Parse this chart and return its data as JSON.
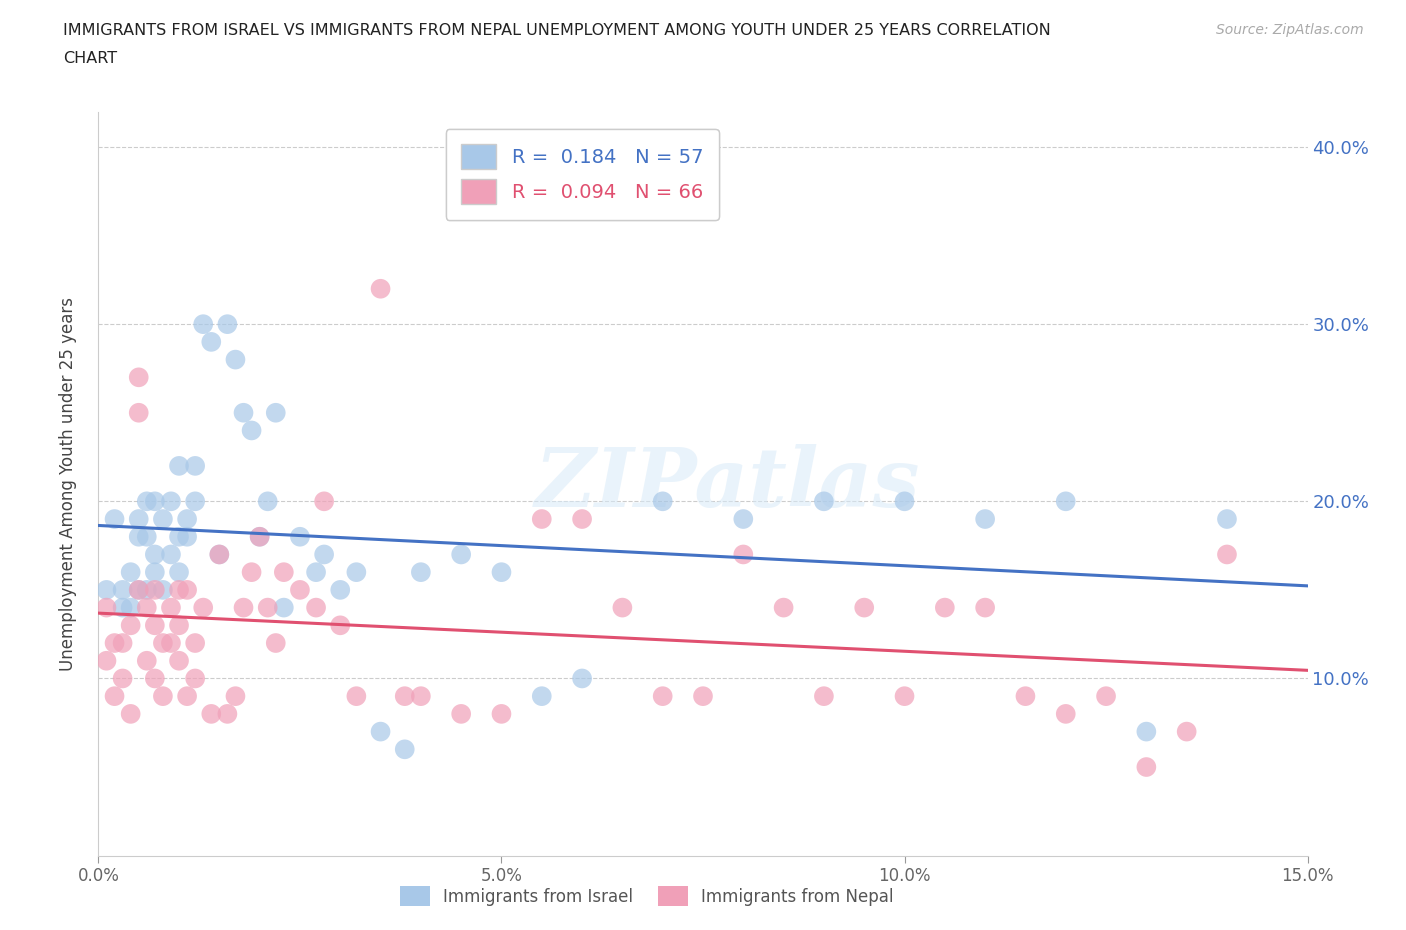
{
  "title_line1": "IMMIGRANTS FROM ISRAEL VS IMMIGRANTS FROM NEPAL UNEMPLOYMENT AMONG YOUTH UNDER 25 YEARS CORRELATION",
  "title_line2": "CHART",
  "source_text": "Source: ZipAtlas.com",
  "ylabel": "Unemployment Among Youth under 25 years",
  "xlim": [
    0.0,
    0.15
  ],
  "ylim": [
    0.0,
    0.42
  ],
  "xticks": [
    0.0,
    0.05,
    0.1,
    0.15
  ],
  "xtick_labels": [
    "0.0%",
    "5.0%",
    "10.0%",
    "15.0%"
  ],
  "ytick_positions": [
    0.1,
    0.2,
    0.3,
    0.4
  ],
  "ytick_labels": [
    "10.0%",
    "20.0%",
    "30.0%",
    "40.0%"
  ],
  "legend_israel": "Immigrants from Israel",
  "legend_nepal": "Immigrants from Nepal",
  "R_israel": "0.184",
  "N_israel": "57",
  "R_nepal": "0.094",
  "N_nepal": "66",
  "color_israel": "#a8c8e8",
  "color_nepal": "#f0a0b8",
  "line_color_israel": "#4472c4",
  "line_color_nepal": "#e05070",
  "ytick_color": "#4472c4",
  "watermark_text": "ZIPatlas",
  "israel_x": [
    0.001,
    0.002,
    0.003,
    0.003,
    0.004,
    0.004,
    0.005,
    0.005,
    0.005,
    0.006,
    0.006,
    0.006,
    0.007,
    0.007,
    0.007,
    0.008,
    0.008,
    0.009,
    0.009,
    0.01,
    0.01,
    0.01,
    0.011,
    0.011,
    0.012,
    0.012,
    0.013,
    0.014,
    0.015,
    0.016,
    0.017,
    0.018,
    0.019,
    0.02,
    0.021,
    0.022,
    0.023,
    0.025,
    0.027,
    0.028,
    0.03,
    0.032,
    0.035,
    0.038,
    0.04,
    0.045,
    0.05,
    0.055,
    0.06,
    0.07,
    0.08,
    0.09,
    0.1,
    0.11,
    0.12,
    0.13,
    0.14
  ],
  "israel_y": [
    0.15,
    0.19,
    0.15,
    0.14,
    0.16,
    0.14,
    0.15,
    0.18,
    0.19,
    0.15,
    0.18,
    0.2,
    0.16,
    0.17,
    0.2,
    0.15,
    0.19,
    0.17,
    0.2,
    0.16,
    0.18,
    0.22,
    0.19,
    0.18,
    0.2,
    0.22,
    0.3,
    0.29,
    0.17,
    0.3,
    0.28,
    0.25,
    0.24,
    0.18,
    0.2,
    0.25,
    0.14,
    0.18,
    0.16,
    0.17,
    0.15,
    0.16,
    0.07,
    0.06,
    0.16,
    0.17,
    0.16,
    0.09,
    0.1,
    0.2,
    0.19,
    0.2,
    0.2,
    0.19,
    0.2,
    0.07,
    0.19
  ],
  "nepal_x": [
    0.001,
    0.001,
    0.002,
    0.002,
    0.003,
    0.003,
    0.004,
    0.004,
    0.005,
    0.005,
    0.005,
    0.006,
    0.006,
    0.007,
    0.007,
    0.007,
    0.008,
    0.008,
    0.009,
    0.009,
    0.01,
    0.01,
    0.01,
    0.011,
    0.011,
    0.012,
    0.012,
    0.013,
    0.014,
    0.015,
    0.016,
    0.017,
    0.018,
    0.019,
    0.02,
    0.021,
    0.022,
    0.023,
    0.025,
    0.027,
    0.028,
    0.03,
    0.032,
    0.035,
    0.038,
    0.04,
    0.045,
    0.05,
    0.055,
    0.06,
    0.065,
    0.07,
    0.075,
    0.08,
    0.085,
    0.09,
    0.095,
    0.1,
    0.105,
    0.11,
    0.115,
    0.12,
    0.125,
    0.13,
    0.135,
    0.14
  ],
  "nepal_y": [
    0.14,
    0.11,
    0.12,
    0.09,
    0.1,
    0.12,
    0.13,
    0.08,
    0.25,
    0.27,
    0.15,
    0.14,
    0.11,
    0.13,
    0.15,
    0.1,
    0.12,
    0.09,
    0.14,
    0.12,
    0.15,
    0.11,
    0.13,
    0.09,
    0.15,
    0.12,
    0.1,
    0.14,
    0.08,
    0.17,
    0.08,
    0.09,
    0.14,
    0.16,
    0.18,
    0.14,
    0.12,
    0.16,
    0.15,
    0.14,
    0.2,
    0.13,
    0.09,
    0.32,
    0.09,
    0.09,
    0.08,
    0.08,
    0.19,
    0.19,
    0.14,
    0.09,
    0.09,
    0.17,
    0.14,
    0.09,
    0.14,
    0.09,
    0.14,
    0.14,
    0.09,
    0.08,
    0.09,
    0.05,
    0.07,
    0.17
  ]
}
